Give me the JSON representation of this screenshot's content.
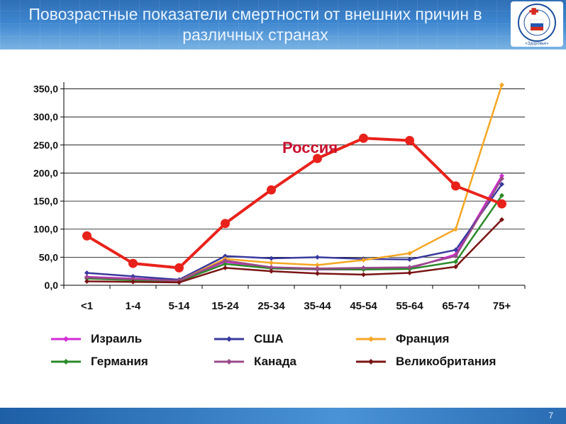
{
  "slide": {
    "title": "Повозрастные показатели смертности от внешних причин в различных странах",
    "page_number": "7",
    "logo_text": "«Здоровье»"
  },
  "colors": {
    "russia": "#e8221b",
    "israel": "#d22bd3",
    "usa": "#3a3a9e",
    "france": "#f5a623",
    "germany": "#2a8a2a",
    "canada": "#9a4a8a",
    "uk": "#7a1515"
  },
  "chart_data": {
    "type": "line",
    "categories": [
      "<1",
      "1-4",
      "5-14",
      "15-24",
      "25-34",
      "35-44",
      "45-54",
      "55-64",
      "65-74",
      "75+"
    ],
    "ylim": [
      0,
      350
    ],
    "yticks": [
      "0,0",
      "50,0",
      "100,0",
      "150,0",
      "200,0",
      "250,0",
      "300,0",
      "350,0"
    ],
    "grid": true,
    "legend_position": "bottom",
    "annotation": "Россия",
    "series": [
      {
        "name": "Израиль",
        "color_key": "israel",
        "values": [
          15,
          12,
          8,
          42,
          30,
          28,
          28,
          30,
          55,
          195
        ]
      },
      {
        "name": "США",
        "color_key": "usa",
        "values": [
          22,
          16,
          10,
          52,
          48,
          50,
          47,
          46,
          63,
          180
        ]
      },
      {
        "name": "Франция",
        "color_key": "france",
        "values": [
          13,
          10,
          8,
          47,
          40,
          36,
          45,
          57,
          100,
          357
        ]
      },
      {
        "name": "Германия",
        "color_key": "germany",
        "values": [
          12,
          9,
          7,
          38,
          30,
          29,
          28,
          29,
          42,
          160
        ]
      },
      {
        "name": "Канада",
        "color_key": "canada",
        "values": [
          14,
          11,
          8,
          44,
          32,
          30,
          31,
          32,
          52,
          190
        ]
      },
      {
        "name": "Великобритания",
        "color_key": "uk",
        "values": [
          7,
          6,
          5,
          31,
          25,
          21,
          19,
          22,
          33,
          117
        ]
      },
      {
        "name": "Россия",
        "color_key": "russia",
        "values": [
          88,
          39,
          31,
          110,
          170,
          226,
          262,
          258,
          177,
          145
        ]
      }
    ]
  }
}
